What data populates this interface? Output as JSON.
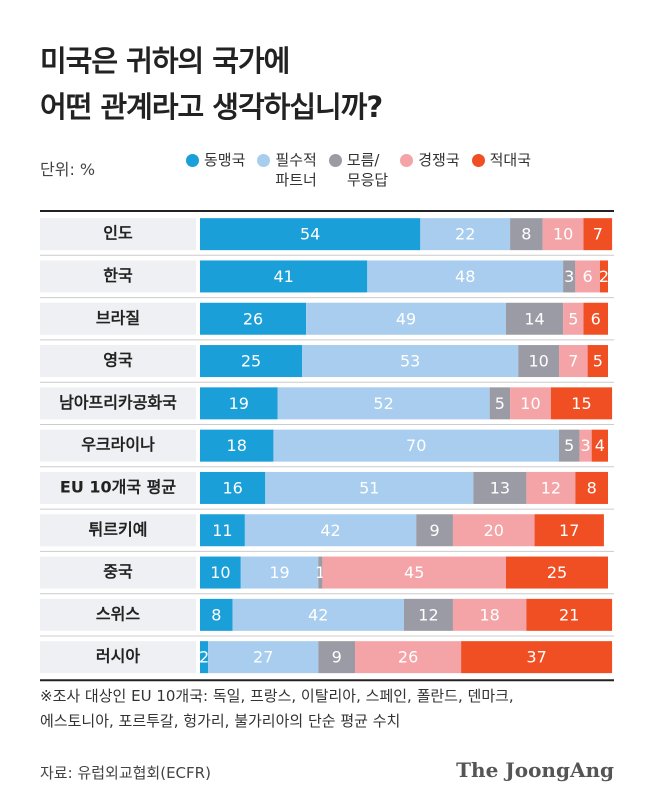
{
  "chart_data": {
    "type": "stacked-bar-horizontal",
    "title": "미국은 귀하의 국가에\n어떤 관계라고 생각하십니까?",
    "unit": "단위: %",
    "categories": [
      "인도",
      "한국",
      "브라질",
      "영국",
      "남아프리카공화국",
      "우크라이나",
      "EU 10개국 평균",
      "튀르키예",
      "중국",
      "스위스",
      "러시아"
    ],
    "series": [
      {
        "name": "동맹국",
        "color": "#1b9fd9",
        "values": [
          54,
          41,
          26,
          25,
          19,
          18,
          16,
          11,
          10,
          8,
          2
        ]
      },
      {
        "name": "필수적\n파트너",
        "color": "#a8cdee",
        "values": [
          22,
          48,
          49,
          53,
          52,
          70,
          51,
          42,
          19,
          42,
          27
        ]
      },
      {
        "name": "모름/\n무응답",
        "color": "#9b9ba6",
        "values": [
          8,
          3,
          14,
          10,
          5,
          5,
          13,
          9,
          1,
          12,
          9
        ]
      },
      {
        "name": "경쟁국",
        "color": "#f4a4a7",
        "values": [
          10,
          6,
          5,
          7,
          10,
          3,
          12,
          20,
          45,
          18,
          26
        ]
      },
      {
        "name": "적대국",
        "color": "#f04e23",
        "values": [
          7,
          2,
          6,
          5,
          15,
          4,
          8,
          17,
          25,
          21,
          37
        ]
      }
    ],
    "footnote": "※조사 대상인 EU 10개국: 독일, 프랑스, 이탈리아, 스페인, 폴란드, 덴마크,\n에스토니아, 포르투갈, 헝가리, 불가리아의 단순 평균 수치",
    "source": "자료: 유럽외교협회(ECFR)",
    "brand": "The JoongAng"
  }
}
